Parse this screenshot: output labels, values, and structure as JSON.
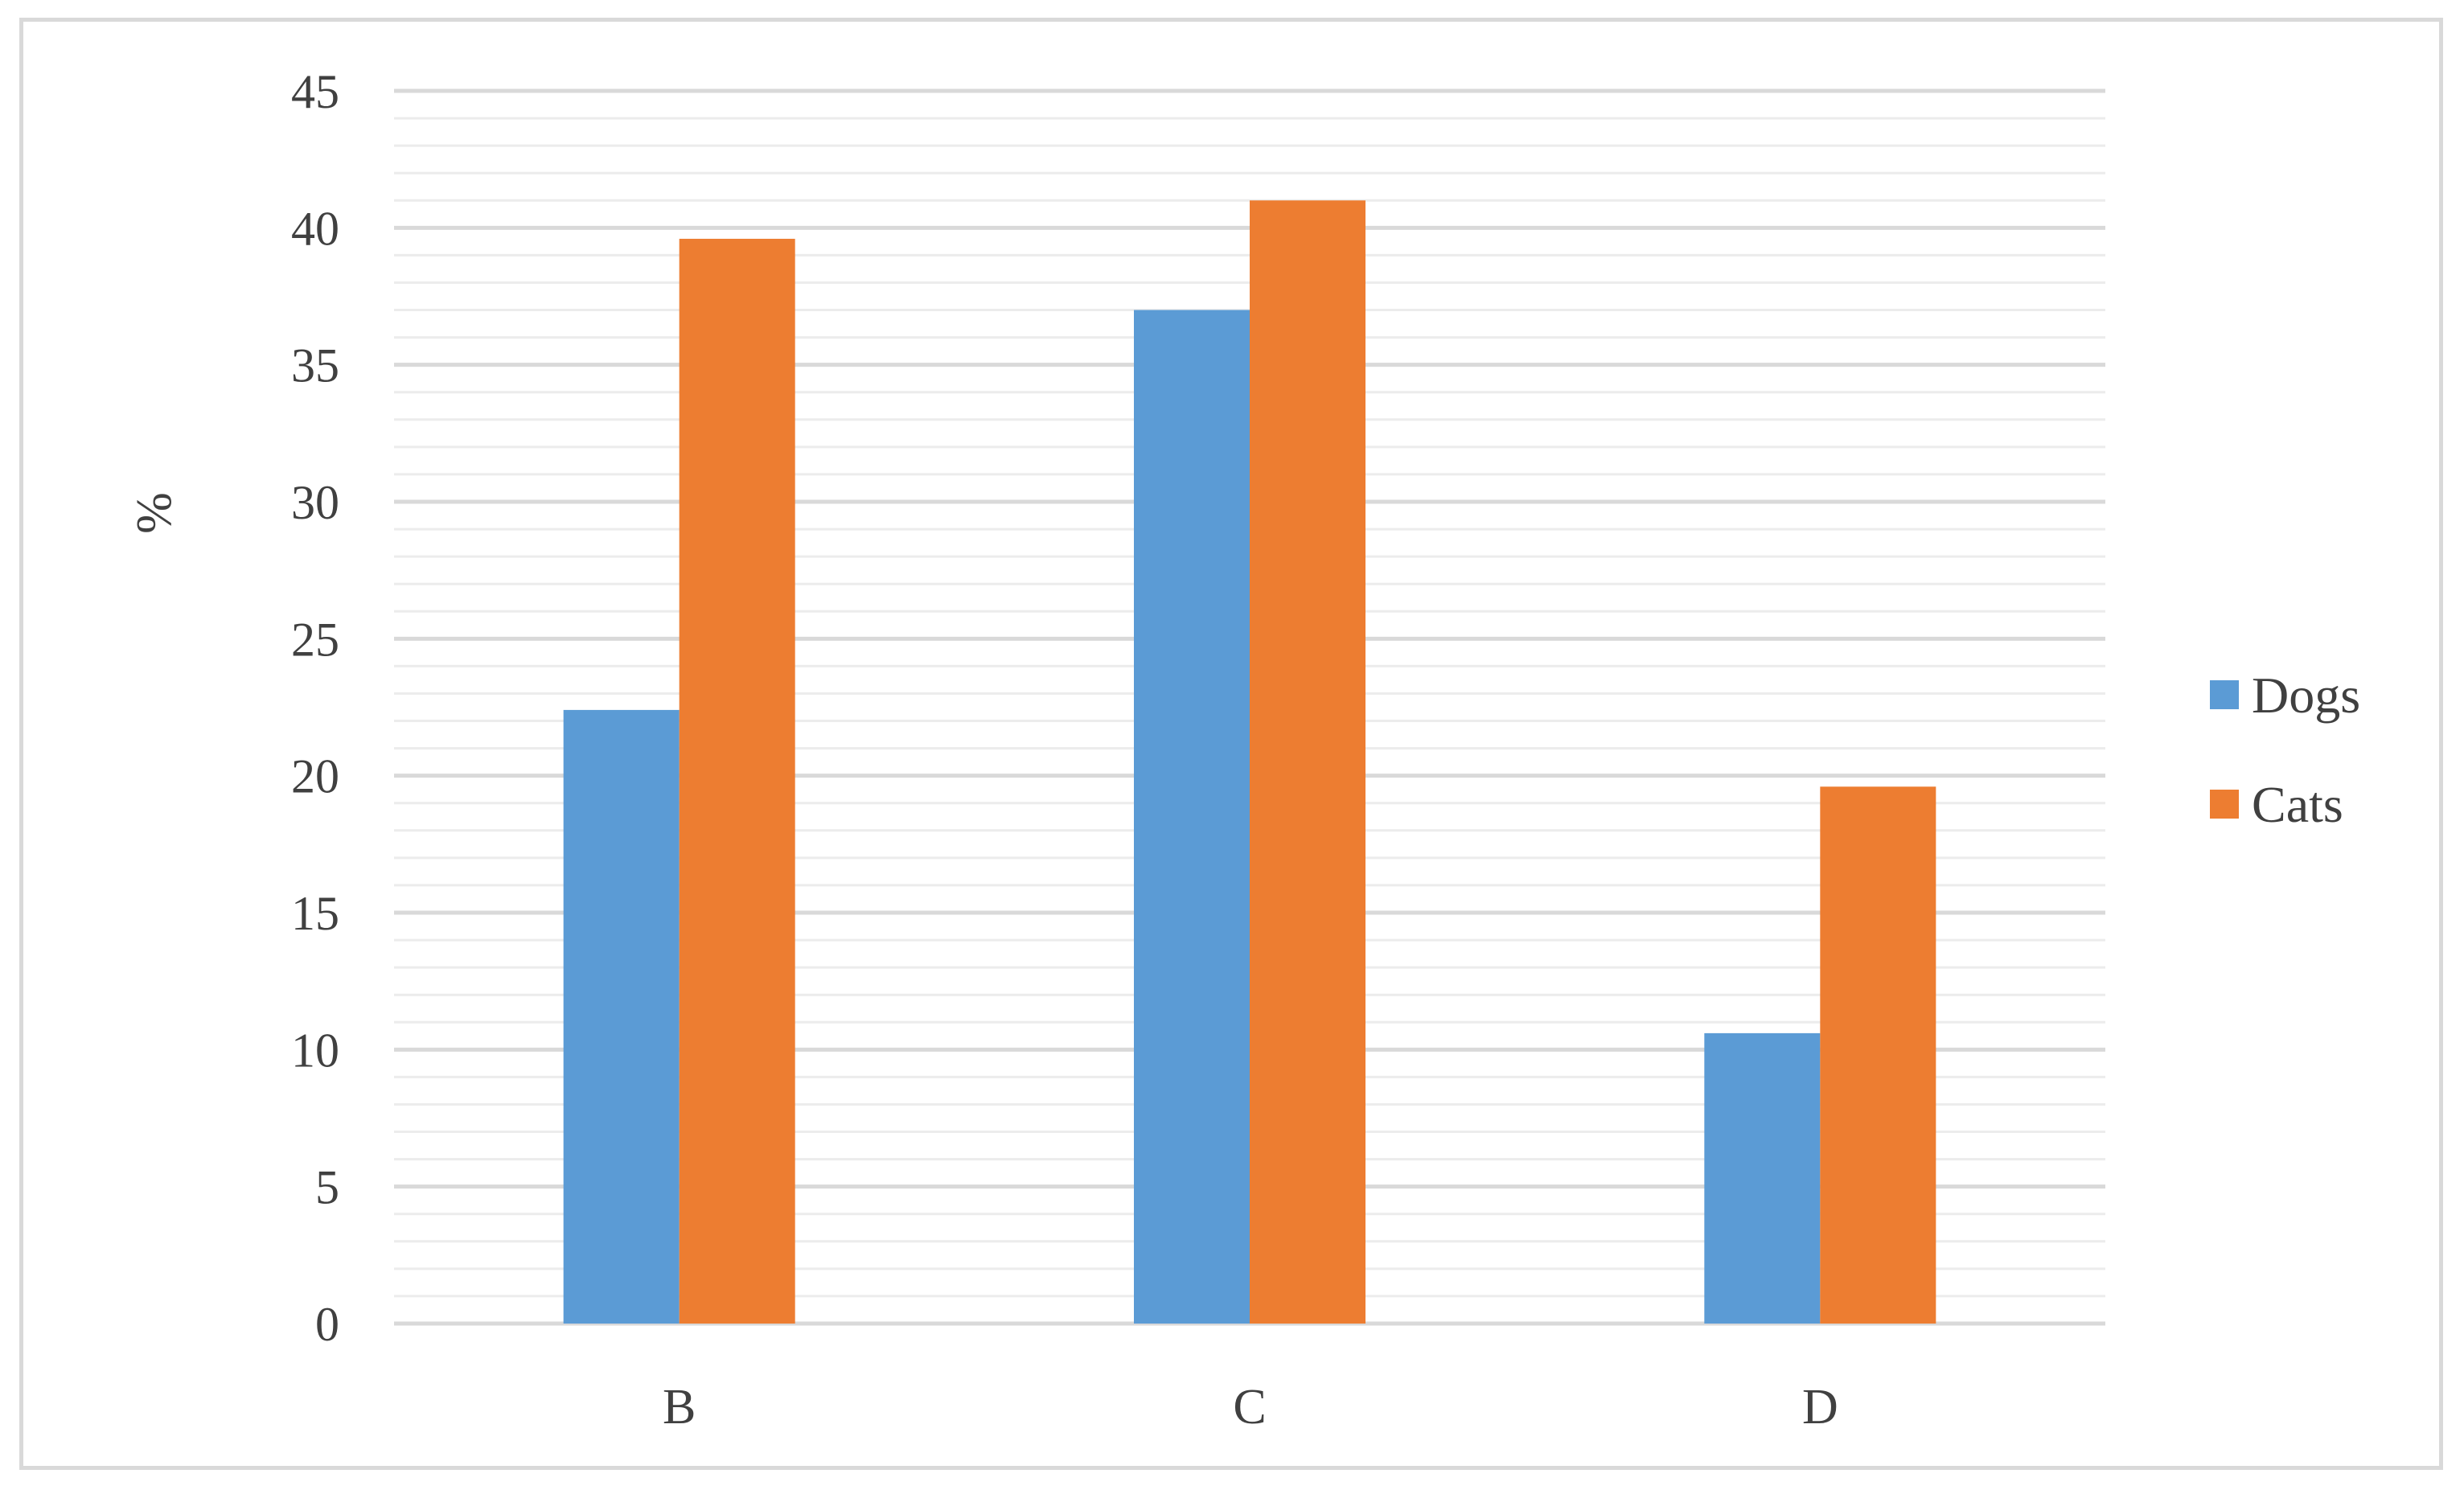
{
  "chart_data": {
    "type": "bar",
    "categories": [
      "B",
      "C",
      "D"
    ],
    "series": [
      {
        "name": "Dogs",
        "values": [
          22.4,
          37.0,
          10.6
        ],
        "color": "#5b9bd5"
      },
      {
        "name": "Cats",
        "values": [
          39.6,
          41.0,
          19.6
        ],
        "color": "#ed7d31"
      }
    ],
    "ylabel": "%",
    "xlabel": "",
    "ylim": [
      0,
      45
    ],
    "yticks": [
      0,
      5,
      10,
      15,
      20,
      25,
      30,
      35,
      40,
      45
    ],
    "major_grid": true,
    "minor_grid": true,
    "legend_position": "right"
  }
}
